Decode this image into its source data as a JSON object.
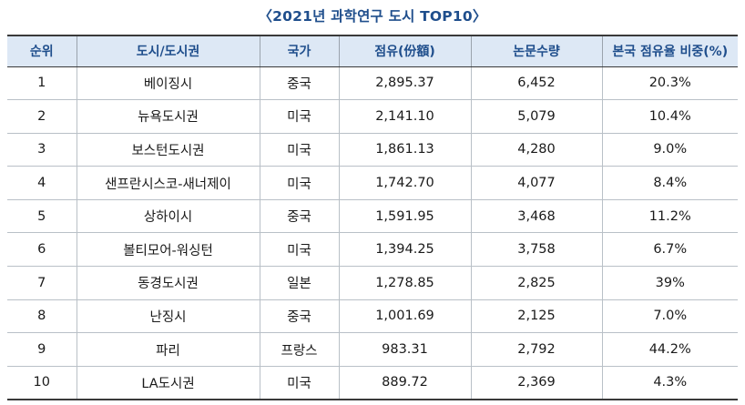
{
  "title": "〈2021년 과학연구 도시 TOP10〉",
  "table": {
    "headers": [
      "순위",
      "도시/도시권",
      "국가",
      "점유(份額)",
      "논문수량",
      "본국 점유율 비중(%)"
    ],
    "rows": [
      [
        "1",
        "베이징시",
        "중국",
        "2,895.37",
        "6,452",
        "20.3%"
      ],
      [
        "2",
        "뉴욕도시권",
        "미국",
        "2,141.10",
        "5,079",
        "10.4%"
      ],
      [
        "3",
        "보스턴도시권",
        "미국",
        "1,861.13",
        "4,280",
        "9.0%"
      ],
      [
        "4",
        "샌프란시스코-새너제이",
        "미국",
        "1,742.70",
        "4,077",
        "8.4%"
      ],
      [
        "5",
        "상하이시",
        "중국",
        "1,591.95",
        "3,468",
        "11.2%"
      ],
      [
        "6",
        "볼티모어-워싱턴",
        "미국",
        "1,394.25",
        "3,758",
        "6.7%"
      ],
      [
        "7",
        "동경도시권",
        "일본",
        "1,278.85",
        "2,825",
        "39%"
      ],
      [
        "8",
        "난징시",
        "중국",
        "1,001.69",
        "2,125",
        "7.0%"
      ],
      [
        "9",
        "파리",
        "프랑스",
        "983.31",
        "2,792",
        "44.2%"
      ],
      [
        "10",
        "LA도시권",
        "미국",
        "889.72",
        "2,369",
        "4.3%"
      ]
    ]
  }
}
